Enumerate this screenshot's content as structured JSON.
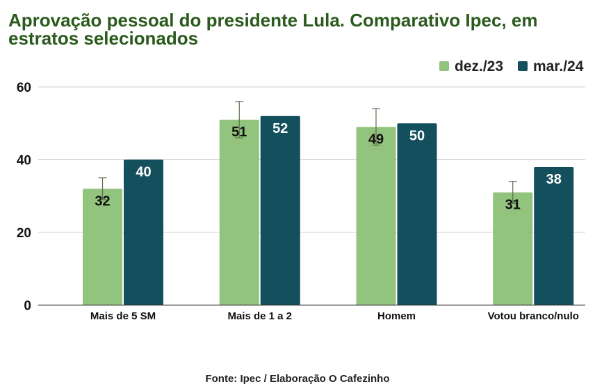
{
  "chart_data": {
    "type": "bar",
    "title": "Aprovação pessoal do presidente Lula. Comparativo Ipec, em estratos selecionados",
    "categories": [
      "Mais de 5 SM",
      "Mais de 1 a 2",
      "Homem",
      "Votou branco/nulo"
    ],
    "series": [
      {
        "name": "dez./23",
        "values": [
          32,
          51,
          49,
          31
        ],
        "color": "#93c47d",
        "error_bars": {
          "low": [
            29,
            46,
            44,
            28
          ],
          "high": [
            35,
            56,
            54,
            34
          ]
        }
      },
      {
        "name": "mar./24",
        "values": [
          40,
          52,
          50,
          38
        ],
        "color": "#134f5c"
      }
    ],
    "ylim": [
      0,
      60
    ],
    "yticks": [
      "0",
      "20",
      "40",
      "60"
    ],
    "xlabel": "",
    "ylabel": "",
    "grid": true,
    "legend_position": "top-right",
    "source": "Fonte: Ipec / Elaboração O Cafezinho"
  }
}
